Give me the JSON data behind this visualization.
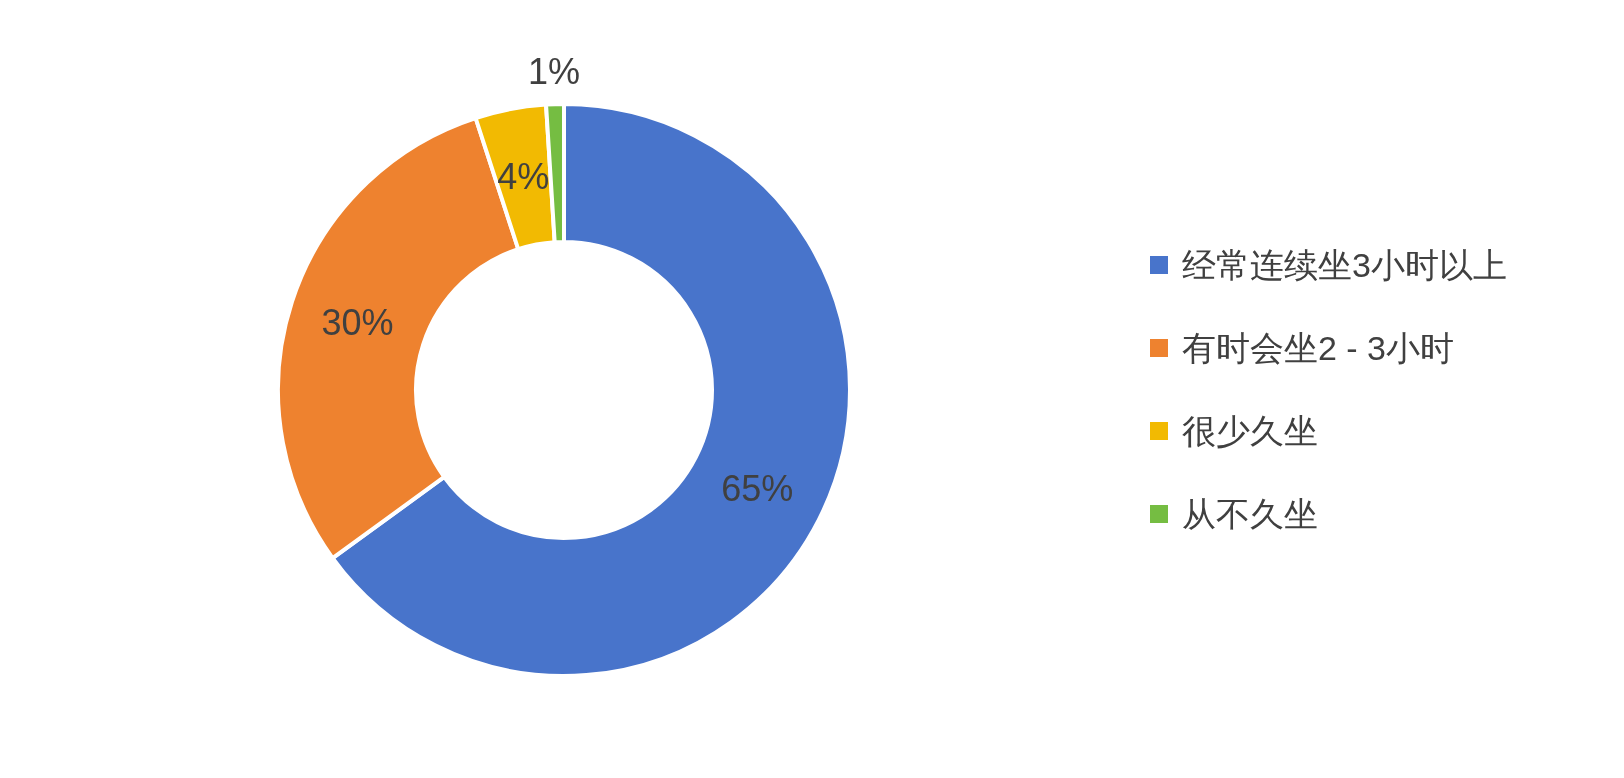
{
  "chart_data": {
    "type": "donut",
    "categories": [
      "经常连续坐3小时以上",
      "有时会坐2 - 3小时",
      "很少久坐",
      "从不久坐"
    ],
    "values": [
      65,
      30,
      4,
      1
    ],
    "colors": [
      "#4874cb",
      "#ee822f",
      "#f2ba02",
      "#75bd42"
    ],
    "value_labels": [
      "65%",
      "30%",
      "4%",
      "1%"
    ],
    "legend": "right"
  }
}
